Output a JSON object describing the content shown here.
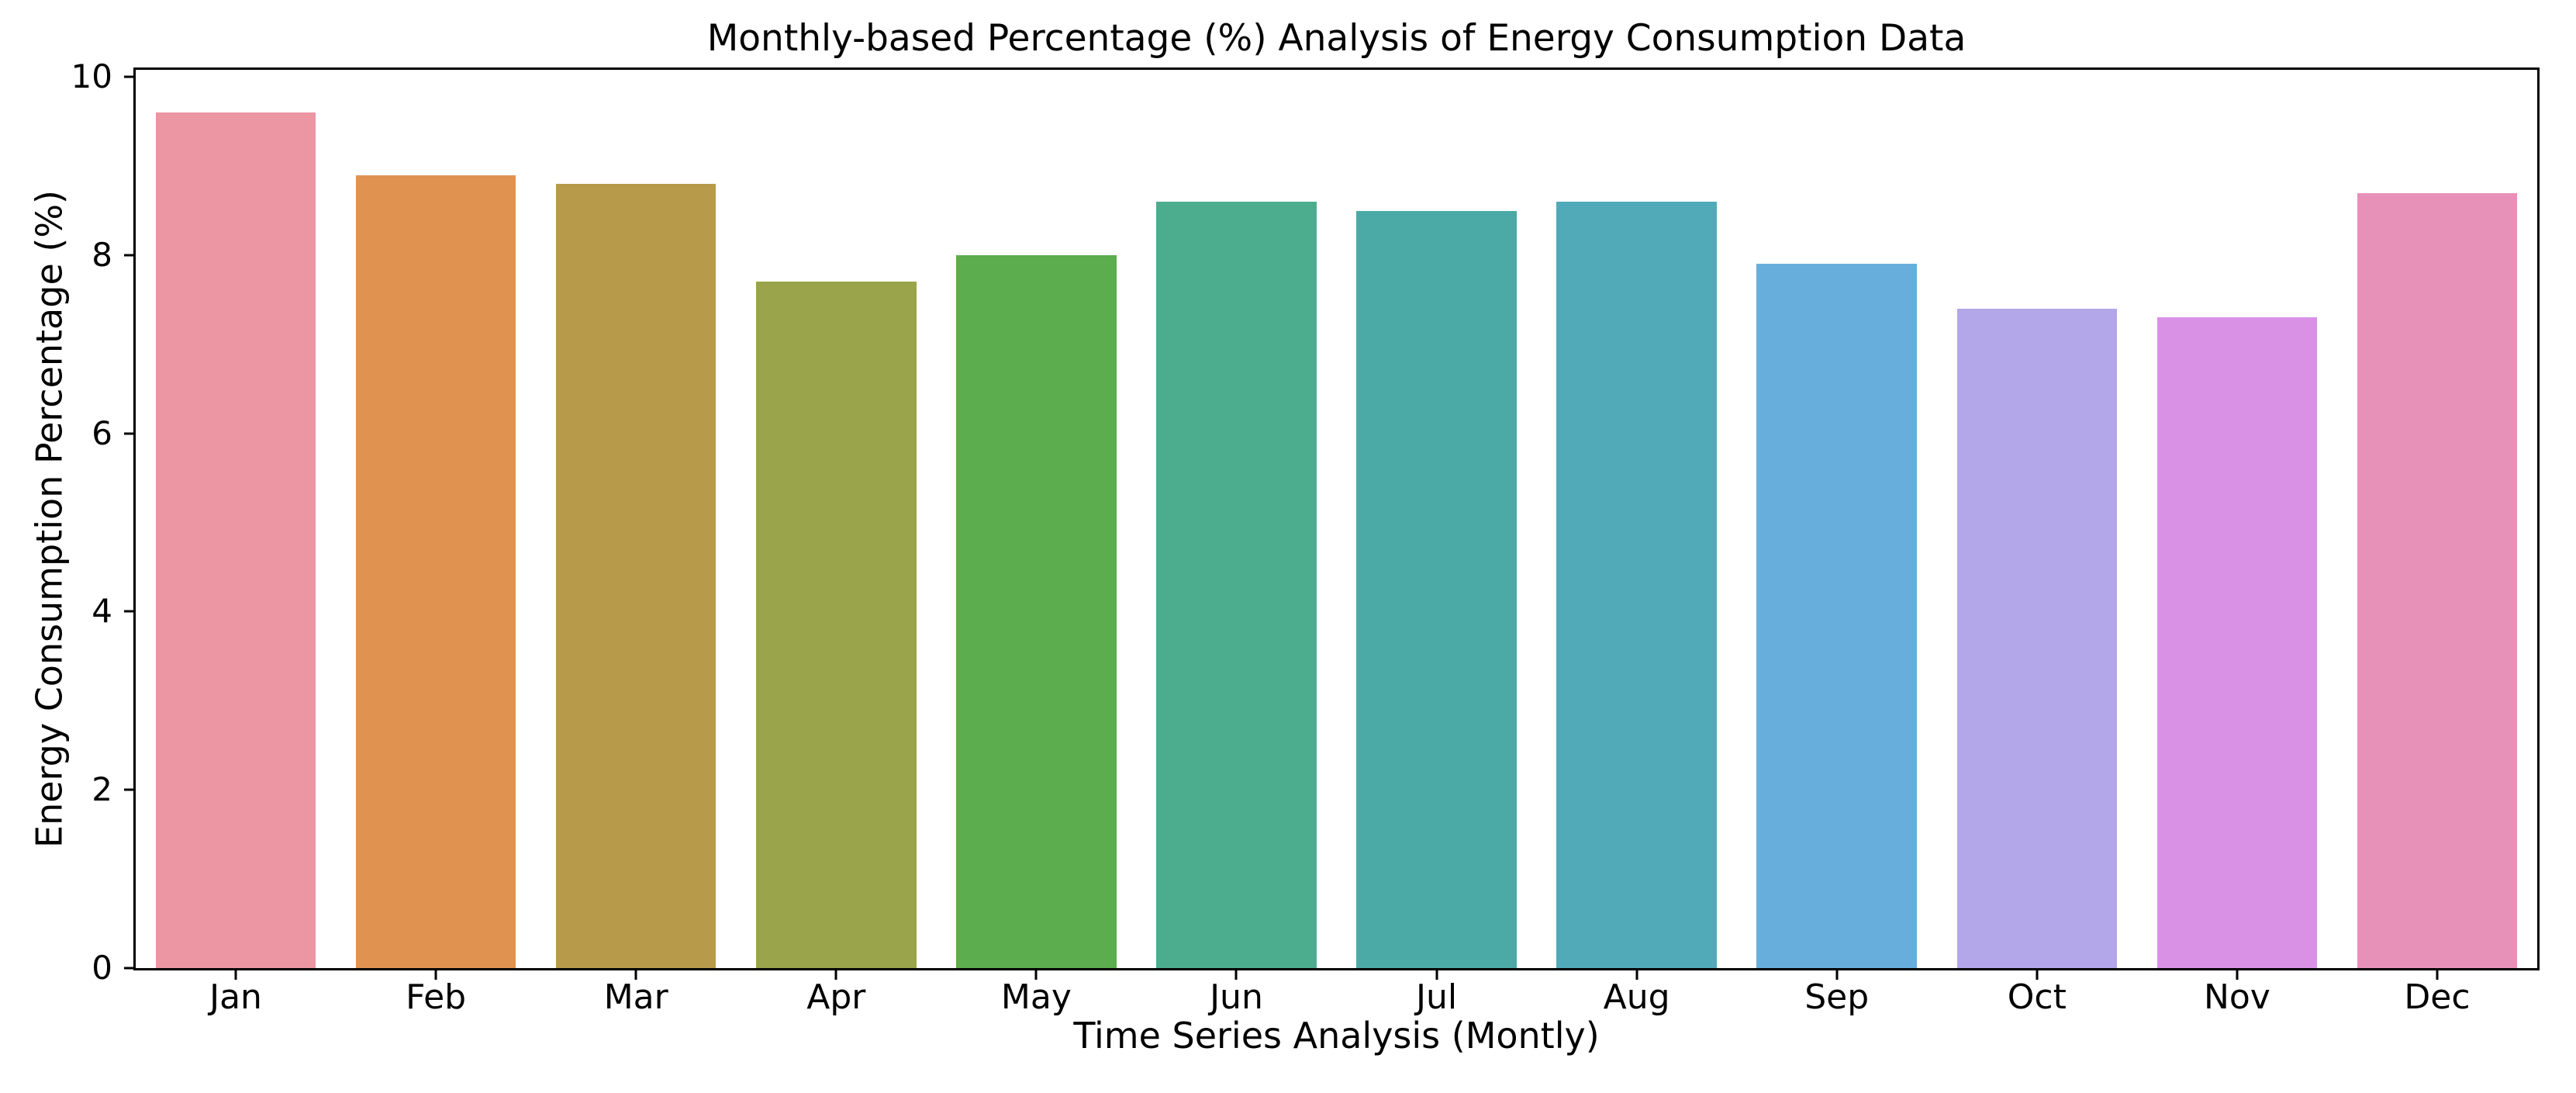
{
  "figure": {
    "background": "#ffffff",
    "text_color": "#000000",
    "spine_color": "#000000"
  },
  "chart_data": {
    "type": "bar",
    "title": "Monthly-based Percentage (%) Analysis of Energy Consumption Data",
    "xlabel": "Time Series Analysis (Montly)",
    "ylabel": "Energy Consumption Percentage (%)",
    "categories": [
      "Jan",
      "Feb",
      "Mar",
      "Apr",
      "May",
      "Jun",
      "Jul",
      "Aug",
      "Sep",
      "Oct",
      "Nov",
      "Dec"
    ],
    "values": [
      9.6,
      8.9,
      8.8,
      7.7,
      8.0,
      8.6,
      8.5,
      8.6,
      7.9,
      7.4,
      7.3,
      8.7
    ],
    "bar_colors": [
      "#ec95a3",
      "#e09351",
      "#b79b4b",
      "#99a44b",
      "#5bad4e",
      "#4bad8d",
      "#4baaa5",
      "#50aab8",
      "#68aedd",
      "#b3a6e9",
      "#d991e5",
      "#e791b9"
    ],
    "yticks": [
      0,
      2,
      4,
      6,
      8,
      10
    ],
    "ylim": [
      0,
      10.08
    ],
    "grid": false,
    "legend_position": "none",
    "bar_width_fraction": 0.8
  }
}
